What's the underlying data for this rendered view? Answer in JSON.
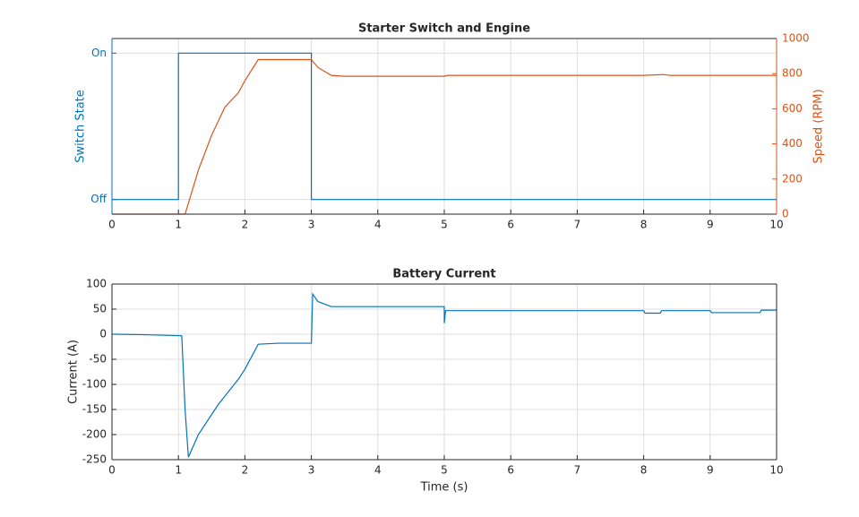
{
  "chart_data": [
    {
      "type": "line",
      "title": "Starter Switch and Engine",
      "ylabel": "Switch State",
      "y2label": "Speed (RPM)",
      "xlim": [
        0,
        10
      ],
      "xticks": [
        0,
        1,
        2,
        3,
        4,
        5,
        6,
        7,
        8,
        9,
        10
      ],
      "ylim": [
        -0.1,
        1.1
      ],
      "yticks": [
        {
          "value": 0,
          "label": "Off"
        },
        {
          "value": 1,
          "label": "On"
        }
      ],
      "y2lim": [
        0,
        1000
      ],
      "y2ticks": [
        0,
        200,
        400,
        600,
        800,
        1000
      ],
      "grid": true,
      "series": [
        {
          "color": "#0072BD",
          "x": [
            0,
            1,
            1,
            3,
            3,
            10
          ],
          "values": [
            0,
            0,
            1,
            1,
            0,
            0
          ]
        },
        {
          "color": "#D95319",
          "axis": "y2",
          "x": [
            0,
            1.1,
            1.3,
            1.5,
            1.7,
            1.9,
            2.0,
            2.2,
            2.5,
            3.0,
            3.1,
            3.3,
            3.5,
            5.0,
            5.05,
            8.0,
            8.3,
            8.4,
            10
          ],
          "values": [
            0,
            0,
            250,
            450,
            610,
            690,
            760,
            880,
            880,
            880,
            835,
            790,
            785,
            785,
            790,
            790,
            795,
            790,
            790
          ]
        }
      ]
    },
    {
      "type": "line",
      "title": "Battery Current",
      "xlabel": "Time (s)",
      "ylabel": "Current (A)",
      "xlim": [
        0,
        10
      ],
      "xticks": [
        0,
        1,
        2,
        3,
        4,
        5,
        6,
        7,
        8,
        9,
        10
      ],
      "ylim": [
        -250,
        100
      ],
      "yticks": [
        -250,
        -200,
        -150,
        -100,
        -50,
        0,
        50,
        100
      ],
      "grid": true,
      "series": [
        {
          "color": "#0072BD",
          "x": [
            0,
            0.5,
            1.05,
            1.1,
            1.15,
            1.3,
            1.6,
            1.9,
            2.0,
            2.2,
            2.5,
            3.0,
            3.02,
            3.1,
            3.3,
            5.0,
            5.0,
            5.02,
            8.0,
            8.02,
            8.25,
            8.27,
            9.0,
            9.02,
            9.75,
            9.77,
            10
          ],
          "values": [
            0,
            -1,
            -3,
            -150,
            -245,
            -200,
            -140,
            -90,
            -70,
            -20,
            -18,
            -18,
            80,
            65,
            55,
            55,
            22,
            47,
            47,
            42,
            42,
            47,
            47,
            43,
            43,
            48,
            48
          ]
        }
      ]
    }
  ]
}
